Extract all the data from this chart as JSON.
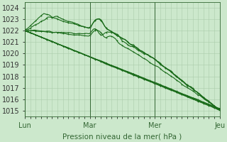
{
  "xlabel": "Pression niveau de la mer( hPa )",
  "bg_color": "#cce8cc",
  "grid_color": "#aaccaa",
  "line_color": "#1a6b1a",
  "ylim": [
    1014.5,
    1024.5
  ],
  "yticks": [
    1015,
    1016,
    1017,
    1018,
    1019,
    1020,
    1021,
    1022,
    1023,
    1024
  ],
  "xtick_labels": [
    "Lun",
    "Mar",
    "Mer",
    "Jeu"
  ],
  "xtick_positions": [
    0,
    48,
    96,
    144
  ],
  "figsize": [
    3.2,
    2.0
  ],
  "dpi": 100
}
